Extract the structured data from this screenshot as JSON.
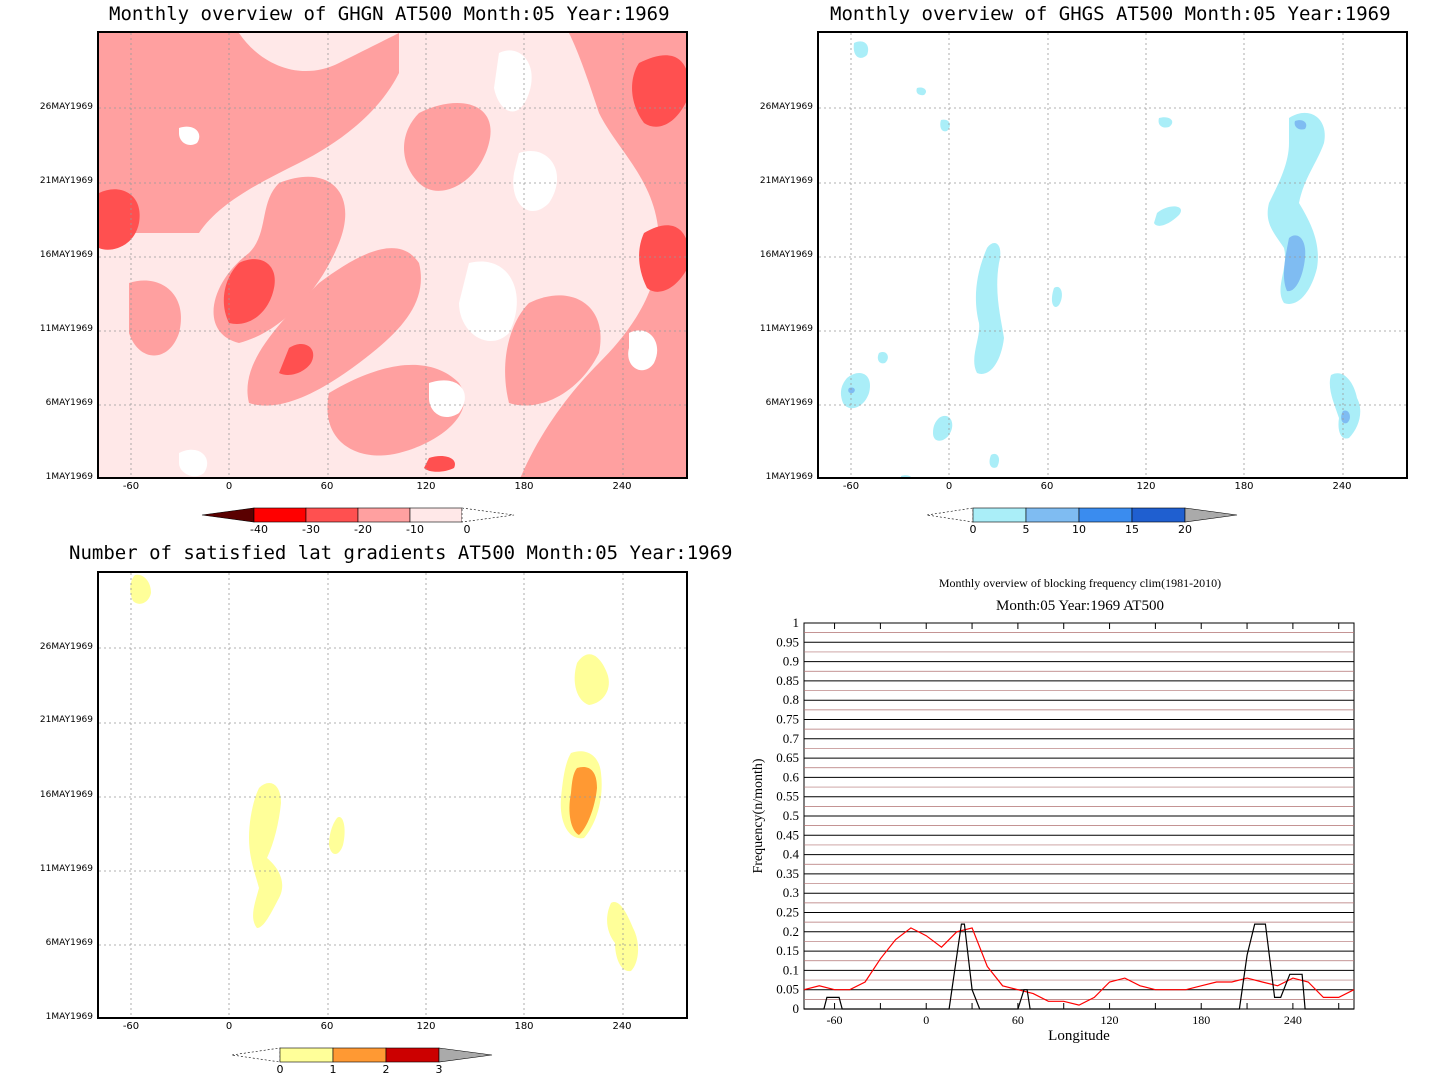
{
  "panels": {
    "ghgn": {
      "title": "Monthly overview of GHGN AT500 Month:05 Year:1969",
      "colorbar_labels": [
        "-40",
        "-30",
        "-20",
        "-10",
        "0"
      ],
      "colors": {
        "c1": "#5a0000",
        "c2": "#ff0000",
        "c3": "#ff5050",
        "c4": "#ffa0a0",
        "c5": "#ffe8e8"
      }
    },
    "ghgs": {
      "title": "Monthly overview of GHGS AT500 Month:05 Year:1969",
      "colorbar_labels": [
        "0",
        "5",
        "10",
        "15",
        "20"
      ],
      "colors": {
        "c1": "#aaeef8",
        "c2": "#7fbcf2",
        "c3": "#3a8cef",
        "c4": "#1f5fd0",
        "c5": "#aaaaaa"
      }
    },
    "lat": {
      "title": "Number of satisfied lat gradients AT500 Month:05 Year:1969",
      "colorbar_labels": [
        "0",
        "1",
        "2",
        "3"
      ],
      "colors": {
        "c1": "#ffff99",
        "c2": "#ff9933",
        "c3": "#cc0000",
        "c4": "#aaaaaa"
      }
    }
  },
  "y_ticks": [
    "1MAY1969",
    "6MAY1969",
    "11MAY1969",
    "16MAY1969",
    "21MAY1969",
    "26MAY1969"
  ],
  "x_ticks": [
    "-60",
    "0",
    "60",
    "120",
    "180",
    "240"
  ],
  "chart_data": {
    "type": "line",
    "title": "Monthly overview of blocking frequency clim(1981-2010)",
    "subtitle": "Month:05 Year:1969  AT500",
    "xlabel": "Longitude",
    "ylabel": "Frequency(n/month)",
    "xlim": [
      -80,
      280
    ],
    "ylim": [
      0,
      1
    ],
    "x_ticks": [
      -60,
      0,
      60,
      120,
      180,
      240
    ],
    "y_ticks": [
      "0",
      "0.05",
      "0.1",
      "0.15",
      "0.2",
      "0.25",
      "0.3",
      "0.35",
      "0.4",
      "0.45",
      "0.5",
      "0.55",
      "0.6",
      "0.65",
      "0.7",
      "0.75",
      "0.8",
      "0.85",
      "0.9",
      "0.95",
      "1"
    ],
    "series": [
      {
        "color": "#ff0000",
        "x": [
          -80,
          -70,
          -60,
          -50,
          -40,
          -30,
          -20,
          -10,
          0,
          10,
          20,
          30,
          40,
          50,
          60,
          70,
          80,
          90,
          100,
          110,
          120,
          130,
          140,
          150,
          160,
          170,
          180,
          190,
          200,
          210,
          220,
          230,
          240,
          250,
          260,
          270,
          280
        ],
        "y": [
          0.05,
          0.06,
          0.05,
          0.05,
          0.07,
          0.13,
          0.18,
          0.21,
          0.19,
          0.16,
          0.2,
          0.21,
          0.11,
          0.06,
          0.05,
          0.04,
          0.02,
          0.02,
          0.01,
          0.03,
          0.07,
          0.08,
          0.06,
          0.05,
          0.05,
          0.05,
          0.06,
          0.07,
          0.07,
          0.08,
          0.07,
          0.06,
          0.08,
          0.07,
          0.03,
          0.03,
          0.05
        ]
      },
      {
        "color": "#000000",
        "x": [
          -80,
          -67,
          -65,
          -57,
          -55,
          0,
          15,
          23,
          25,
          30,
          35,
          60,
          64,
          66,
          68,
          205,
          210,
          215,
          218,
          222,
          228,
          232,
          238,
          246,
          248,
          280
        ],
        "y": [
          0,
          0,
          0.03,
          0.03,
          0,
          0,
          0,
          0.22,
          0.22,
          0.05,
          0,
          0,
          0.05,
          0.05,
          0,
          0,
          0.14,
          0.22,
          0.22,
          0.22,
          0.03,
          0.03,
          0.09,
          0.09,
          0,
          0
        ]
      }
    ]
  }
}
